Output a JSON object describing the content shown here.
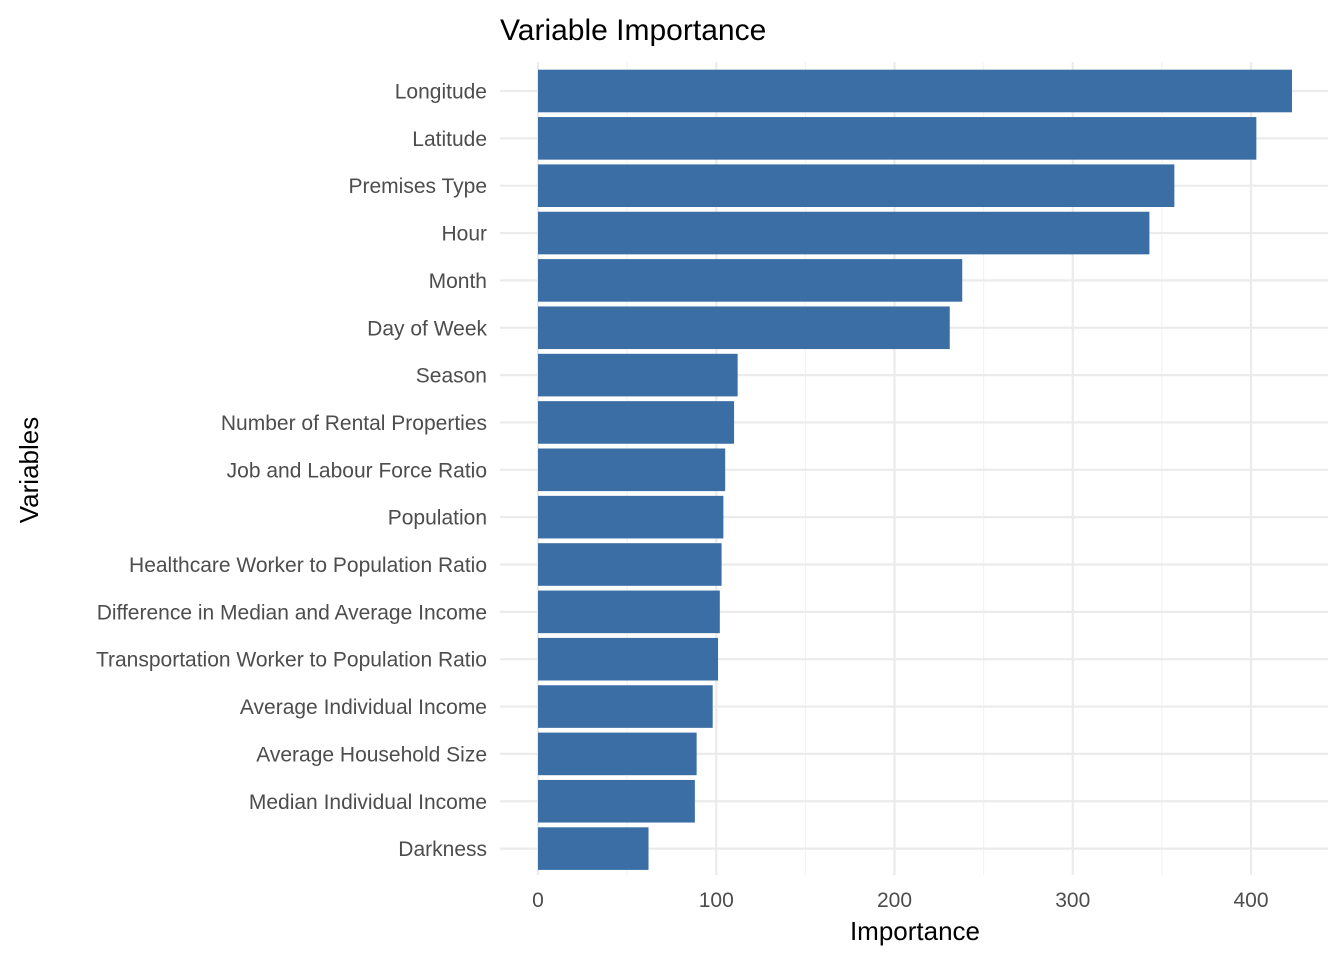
{
  "chart_data": {
    "type": "bar",
    "orientation": "horizontal",
    "title": "Variable Importance",
    "xlabel": "Importance",
    "ylabel": "Variables",
    "xlim": [
      0,
      440
    ],
    "xticks": [
      0,
      100,
      200,
      300,
      400
    ],
    "xtick_labels": [
      "0",
      "100",
      "200",
      "300",
      "400"
    ],
    "grid": true,
    "bar_color": "#3a6ea5",
    "categories": [
      "Longitude",
      "Latitude",
      "Premises Type",
      "Hour",
      "Month",
      "Day of Week",
      "Season",
      "Number of Rental Properties",
      "Job and Labour Force Ratio",
      "Population",
      "Healthcare Worker to Population Ratio",
      "Difference in Median and Average Income",
      "Transportation Worker to Population Ratio",
      "Average Individual Income",
      "Average Household Size",
      "Median Individual Income",
      "Darkness"
    ],
    "values": [
      423,
      403,
      357,
      343,
      238,
      231,
      112,
      110,
      105,
      104,
      103,
      102,
      101,
      98,
      89,
      88,
      62
    ]
  }
}
